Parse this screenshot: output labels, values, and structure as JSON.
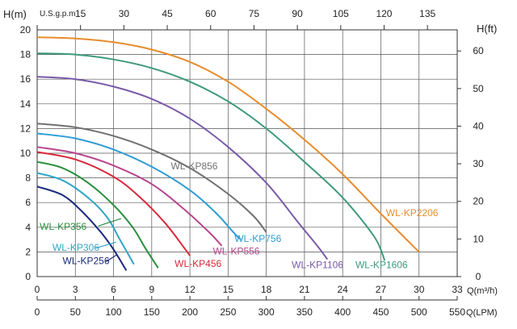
{
  "chart_data": {
    "type": "line",
    "left_axis": {
      "label": "H(m)",
      "min": 0,
      "max": 20,
      "step": 2
    },
    "right_axis": {
      "label": "H(ft)",
      "ticks": [
        0,
        10,
        20,
        30,
        40,
        50,
        60
      ]
    },
    "bottom_axis": {
      "label": "Q(m³/h)",
      "min": 0,
      "max": 33,
      "step": 3
    },
    "bottom_axis_2": {
      "label": "Q(LPM)",
      "ticks": [
        0,
        50,
        100,
        150,
        200,
        250,
        300,
        350,
        400,
        450,
        500,
        550
      ]
    },
    "top_axis": {
      "label": "U.S.g.p.m",
      "ticks": [
        15,
        30,
        45,
        60,
        75,
        90,
        105,
        120,
        135
      ]
    },
    "grid": true,
    "series": [
      {
        "name": "WL-KP2206",
        "color": "#E88C2C",
        "points": [
          [
            0,
            19.4
          ],
          [
            3,
            19.3
          ],
          [
            6,
            19.0
          ],
          [
            9,
            18.4
          ],
          [
            12,
            17.4
          ],
          [
            15,
            15.8
          ],
          [
            18,
            13.6
          ],
          [
            21,
            11.1
          ],
          [
            24,
            8.3
          ],
          [
            27,
            5.1
          ],
          [
            30,
            2.0
          ]
        ]
      },
      {
        "name": "WL-KP1606",
        "color": "#3E9A7C",
        "points": [
          [
            0,
            18.1
          ],
          [
            3,
            18.0
          ],
          [
            6,
            17.6
          ],
          [
            9,
            16.9
          ],
          [
            12,
            15.8
          ],
          [
            15,
            14.2
          ],
          [
            18,
            12.0
          ],
          [
            21,
            9.3
          ],
          [
            24,
            6.4
          ],
          [
            26.5,
            3.2
          ],
          [
            27.3,
            1.3
          ]
        ]
      },
      {
        "name": "WL-KP1106",
        "color": "#7A5AA8",
        "points": [
          [
            0,
            16.2
          ],
          [
            3,
            16.0
          ],
          [
            6,
            15.4
          ],
          [
            9,
            14.4
          ],
          [
            12,
            12.8
          ],
          [
            15,
            10.5
          ],
          [
            18,
            7.6
          ],
          [
            20.5,
            4.4
          ],
          [
            22,
            2.5
          ],
          [
            22.8,
            1.4
          ]
        ]
      },
      {
        "name": "WL-KP856",
        "color": "#707070",
        "points": [
          [
            0,
            12.4
          ],
          [
            3,
            12.1
          ],
          [
            6,
            11.4
          ],
          [
            9,
            10.3
          ],
          [
            12,
            8.8
          ],
          [
            15,
            6.7
          ],
          [
            17,
            4.9
          ],
          [
            18,
            3.6
          ]
        ]
      },
      {
        "name": "WL-KP756",
        "color": "#2E9CD6",
        "points": [
          [
            0,
            11.6
          ],
          [
            3,
            11.2
          ],
          [
            6,
            10.3
          ],
          [
            9,
            8.9
          ],
          [
            12,
            7.0
          ],
          [
            14,
            5.2
          ],
          [
            15.5,
            3.5
          ],
          [
            16,
            3.0
          ]
        ]
      },
      {
        "name": "WL-KP556",
        "color": "#B7458E",
        "points": [
          [
            0,
            10.5
          ],
          [
            3,
            10.0
          ],
          [
            6,
            9.0
          ],
          [
            9,
            7.5
          ],
          [
            11.5,
            5.5
          ],
          [
            13.5,
            3.6
          ],
          [
            14.5,
            2.5
          ]
        ]
      },
      {
        "name": "WL-KP456",
        "color": "#D9293A",
        "points": [
          [
            0,
            10.1
          ],
          [
            3,
            9.5
          ],
          [
            6,
            8.1
          ],
          [
            8,
            6.5
          ],
          [
            10,
            4.4
          ],
          [
            11.5,
            2.4
          ],
          [
            12,
            1.7
          ]
        ]
      },
      {
        "name": "WL-KP356",
        "color": "#2A8F3E",
        "points": [
          [
            0,
            9.3
          ],
          [
            2,
            8.8
          ],
          [
            4,
            7.6
          ],
          [
            6,
            5.8
          ],
          [
            7.5,
            4.0
          ],
          [
            8.5,
            2.3
          ],
          [
            9.5,
            0.7
          ]
        ]
      },
      {
        "name": "WL-KP306",
        "color": "#2FA6C7",
        "points": [
          [
            0,
            8.4
          ],
          [
            2,
            7.8
          ],
          [
            4,
            6.4
          ],
          [
            5.5,
            4.8
          ],
          [
            6.5,
            3.0
          ],
          [
            7.6,
            1.0
          ]
        ]
      },
      {
        "name": "WL-KP256",
        "color": "#1A2A7A",
        "points": [
          [
            0,
            7.3
          ],
          [
            2,
            6.6
          ],
          [
            3.5,
            5.3
          ],
          [
            5,
            3.6
          ],
          [
            6,
            2.2
          ],
          [
            7,
            0.5
          ]
        ]
      }
    ],
    "labels": [
      {
        "text": "WL-KP2206",
        "color": "#E88C2C",
        "x": 27.4,
        "y": 4.9
      },
      {
        "text": "WL-KP1606",
        "color": "#3E9A7C",
        "x": 25.0,
        "y": 0.7
      },
      {
        "text": "WL-KP1106",
        "color": "#7A5AA8",
        "x": 20.0,
        "y": 0.7
      },
      {
        "text": "WL-KP856",
        "color": "#707070",
        "x": 10.5,
        "y": 8.7
      },
      {
        "text": "WL-KP756",
        "color": "#2E9CD6",
        "x": 15.5,
        "y": 2.8
      },
      {
        "text": "WL-KP556",
        "color": "#B7458E",
        "x": 13.8,
        "y": 1.8
      },
      {
        "text": "WL-KP456",
        "color": "#D9293A",
        "x": 10.8,
        "y": 0.8
      },
      {
        "text": "WL-KP356",
        "color": "#2A8F3E",
        "x": 0.2,
        "y": 3.8
      },
      {
        "text": "WL-KP306",
        "color": "#2FA6C7",
        "x": 1.2,
        "y": 2.1
      },
      {
        "text": "WL-KP256",
        "color": "#1A2A7A",
        "x": 2.0,
        "y": 1.0
      }
    ],
    "leaders": [
      {
        "series": "WL-KP356",
        "from": [
          4.8,
          4.1
        ],
        "to": [
          6.6,
          4.7
        ]
      },
      {
        "series": "WL-KP306",
        "from": [
          4.6,
          2.3
        ],
        "to": [
          6.2,
          2.8
        ]
      },
      {
        "series": "WL-KP256",
        "from": [
          5.4,
          1.2
        ],
        "to": [
          6.3,
          1.8
        ]
      }
    ]
  }
}
